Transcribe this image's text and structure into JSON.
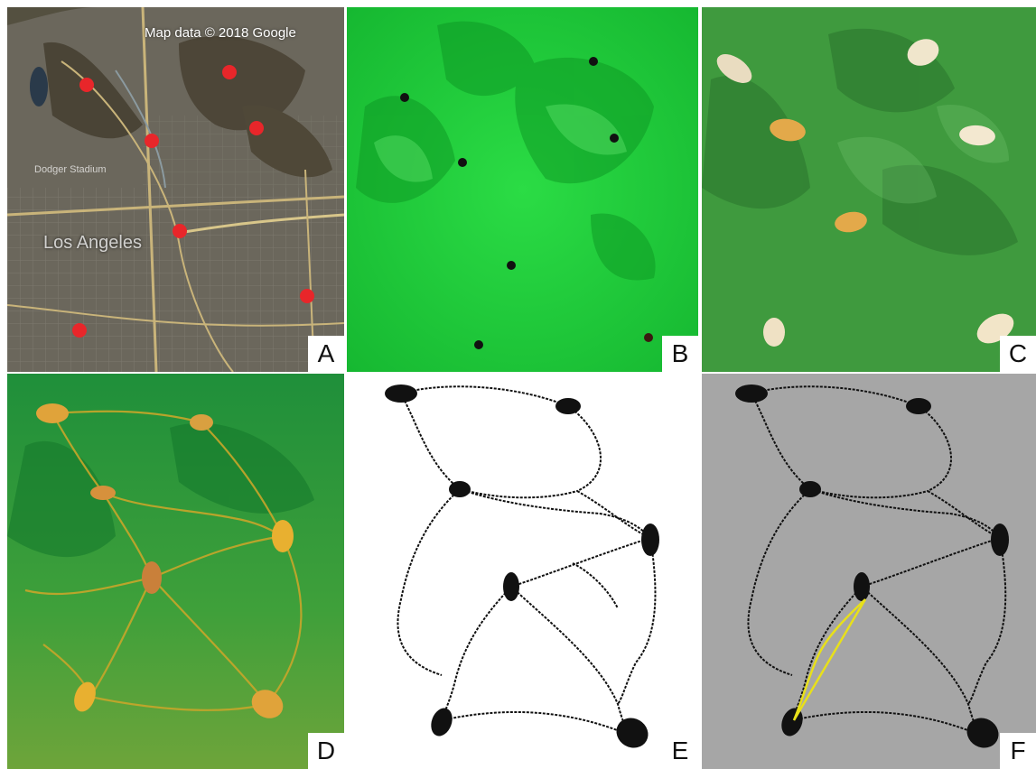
{
  "figure": {
    "panels": [
      {
        "id": "A",
        "label": "A",
        "description_kind": "satellite-map"
      },
      {
        "id": "B",
        "label": "B",
        "description_kind": "terrain-points"
      },
      {
        "id": "C",
        "label": "C",
        "description_kind": "terrain-oat-flakes"
      },
      {
        "id": "D",
        "label": "D",
        "description_kind": "slime-mold-network"
      },
      {
        "id": "E",
        "label": "E",
        "description_kind": "binarized-network"
      },
      {
        "id": "F",
        "label": "F",
        "description_kind": "network-highlighted-path"
      }
    ],
    "map_attribution": "Map data © 2018 Google",
    "map_city_label": "Los Angeles",
    "map_poi_label": "Dodger Stadium",
    "colors": {
      "terrain_green": "#1fd63a",
      "moss_green": "#3f9a3e",
      "slime_yellow": "#c8a62a",
      "marker_red": "#e8262a",
      "network_black": "#111111",
      "highlight_yellow": "#e8e01a",
      "gray_bg": "#a6a6a6"
    }
  }
}
